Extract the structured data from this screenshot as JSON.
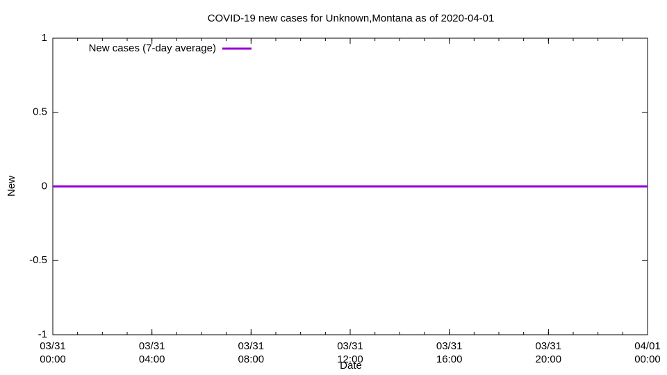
{
  "chart_data": {
    "type": "line",
    "title": "COVID-19 new cases for Unknown,Montana as of 2020-04-01",
    "xlabel": "Date",
    "ylabel": "New",
    "x": [
      "03/31 00:00",
      "04/01 00:00"
    ],
    "series": [
      {
        "name": "New cases (7-day average)",
        "color": "#9400d3",
        "values": [
          0,
          0
        ]
      }
    ],
    "xlim": [
      "03/31 00:00",
      "04/01 00:00"
    ],
    "xticks": [
      "03/31\n00:00",
      "03/31\n04:00",
      "03/31\n08:00",
      "03/31\n12:00",
      "03/31\n16:00",
      "03/31\n20:00",
      "04/01\n00:00"
    ],
    "ylim": [
      -1,
      1
    ],
    "yticks": [
      -1,
      -0.5,
      0,
      0.5,
      1
    ],
    "grid": false,
    "legend": "upper left"
  }
}
